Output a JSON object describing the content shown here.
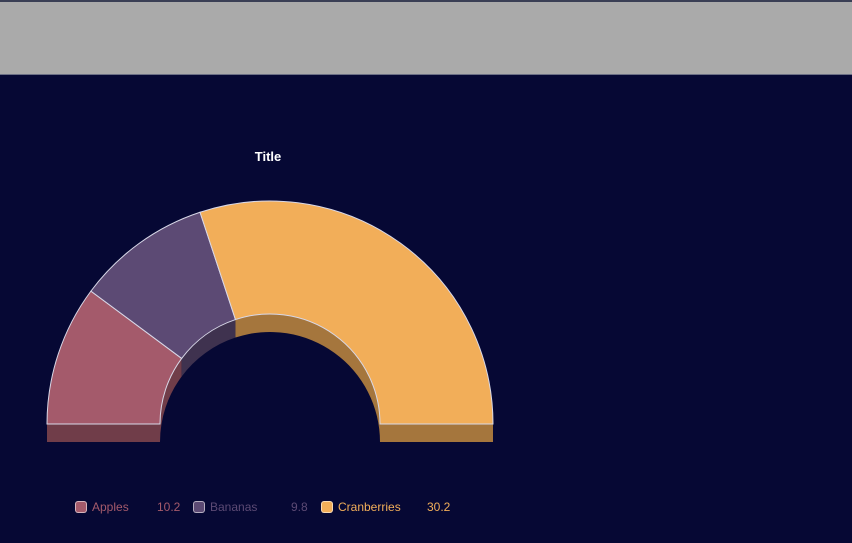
{
  "top_bar": {},
  "chart_data": {
    "type": "pie",
    "variant": "semicircle-donut-3d",
    "title": "Title",
    "categories": [
      "Apples",
      "Bananas",
      "Cranberries"
    ],
    "values": [
      10.2,
      9.8,
      30.2
    ],
    "colors": [
      "#a45a6b",
      "#5c4a74",
      "#f2ae59"
    ],
    "legend_position": "bottom-left"
  }
}
